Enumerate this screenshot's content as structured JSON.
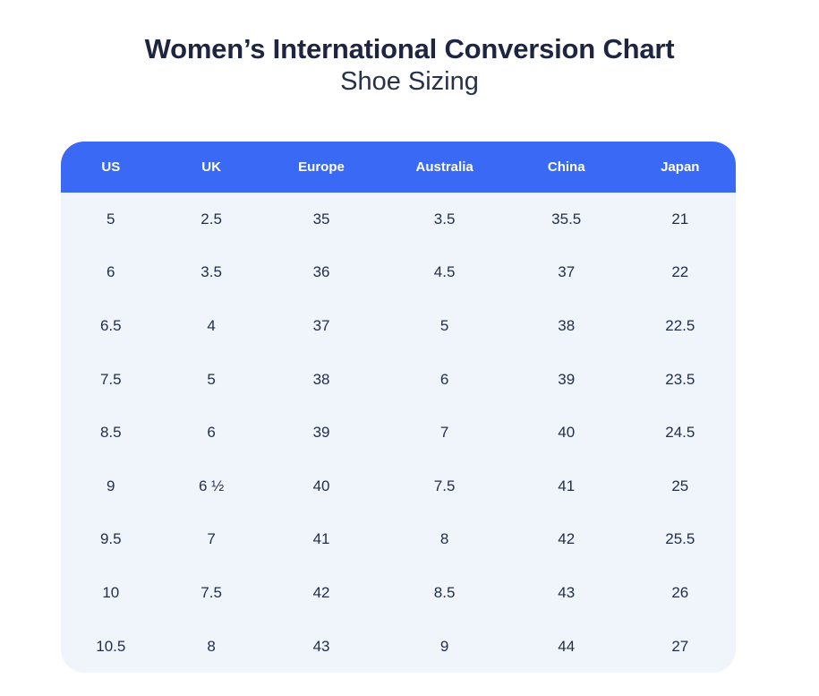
{
  "header": {
    "title": "Women’s International Conversion Chart",
    "subtitle": "Shoe Sizing"
  },
  "chart_data": {
    "type": "table",
    "title": "Women’s International Conversion Chart",
    "subtitle": "Shoe Sizing",
    "columns": [
      "US",
      "UK",
      "Europe",
      "Australia",
      "China",
      "Japan"
    ],
    "rows": [
      [
        "5",
        "2.5",
        "35",
        "3.5",
        "35.5",
        "21"
      ],
      [
        "6",
        "3.5",
        "36",
        "4.5",
        "37",
        "22"
      ],
      [
        "6.5",
        "4",
        "37",
        "5",
        "38",
        "22.5"
      ],
      [
        "7.5",
        "5",
        "38",
        "6",
        "39",
        "23.5"
      ],
      [
        "8.5",
        "6",
        "39",
        "7",
        "40",
        "24.5"
      ],
      [
        "9",
        "6 ½",
        "40",
        "7.5",
        "41",
        "25"
      ],
      [
        "9.5",
        "7",
        "41",
        "8",
        "42",
        "25.5"
      ],
      [
        "10",
        "7.5",
        "42",
        "8.5",
        "43",
        "26"
      ],
      [
        "10.5",
        "8",
        "43",
        "9",
        "44",
        "27"
      ]
    ]
  },
  "colors": {
    "header_bg": "#3A6AF5",
    "header_text": "#FFFFFF",
    "body_bg": "#F0F5FC",
    "body_text": "#232E49",
    "title_color": "#1E2541",
    "subtitle_color": "#273149"
  }
}
